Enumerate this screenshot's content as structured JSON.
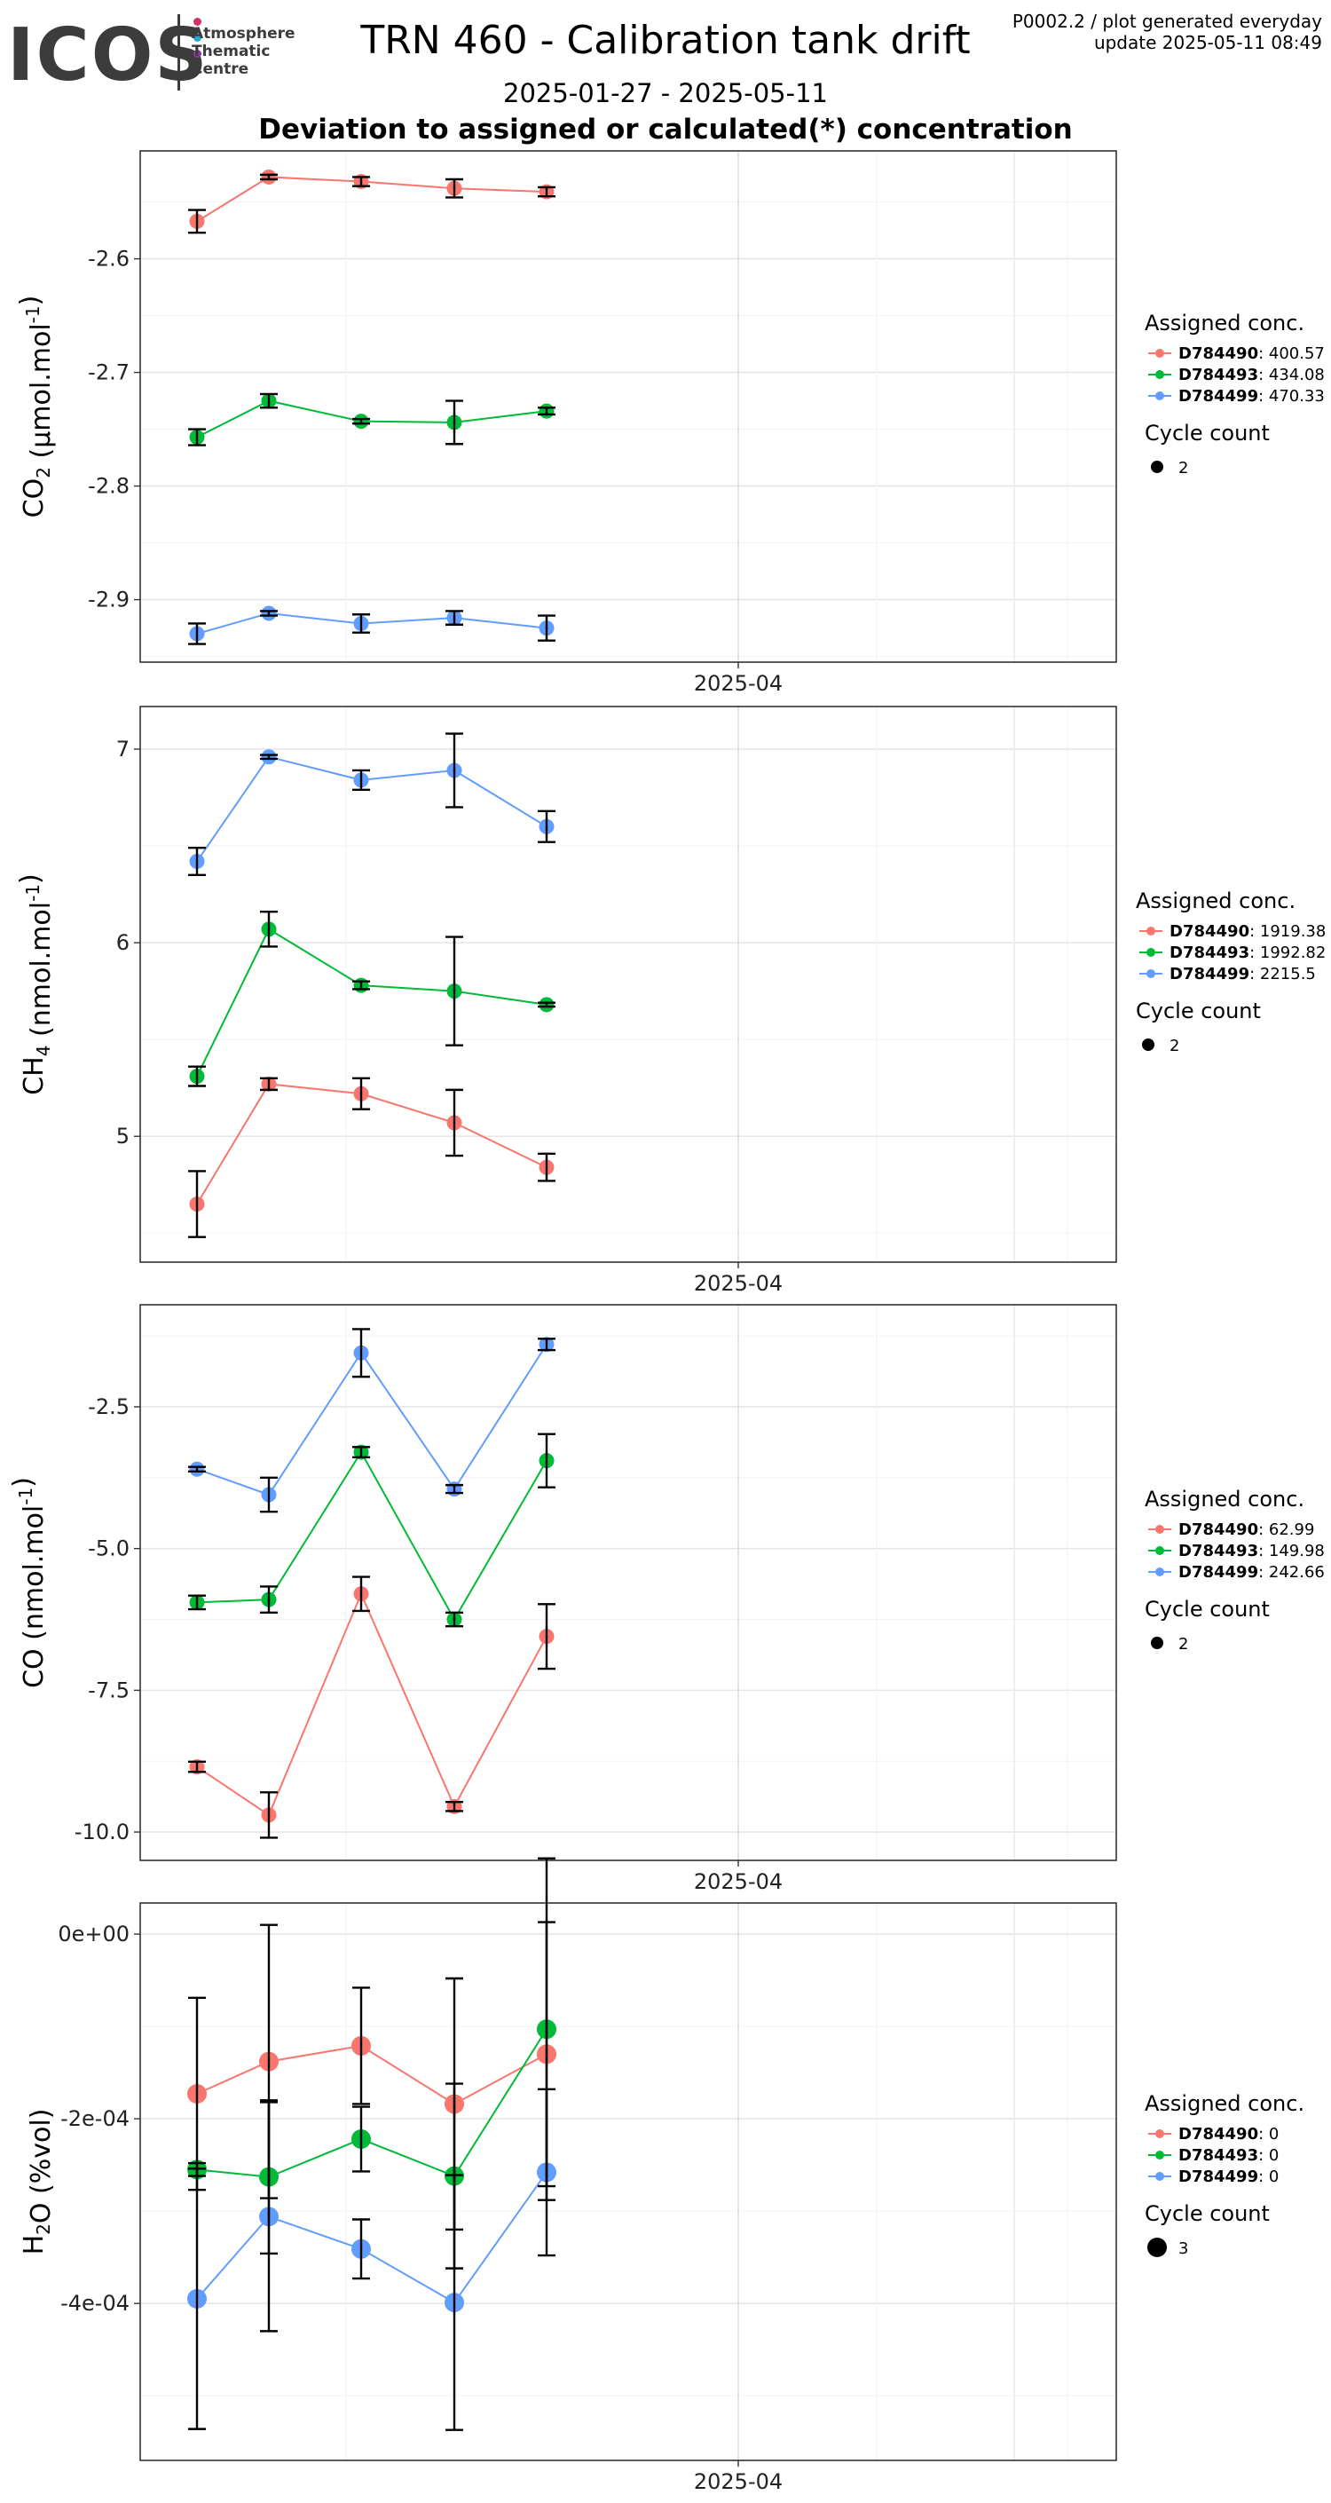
{
  "logo": {
    "text": "ICOS",
    "subtitle_lines": [
      "Atmosphere",
      "Thematic",
      "Centre"
    ],
    "dot_colors": [
      "#d0306c",
      "#1fa8e0",
      "#8a3b9e"
    ]
  },
  "header": {
    "title": "TRN 460 - Calibration tank drift",
    "date_range": "2025-01-27 - 2025-05-11",
    "subtitle": "Deviation to assigned or calculated(*) concentration",
    "meta_line1": "P0002.2 / plot generated everyday",
    "meta_line2": "update  2025-05-11 08:49"
  },
  "colors": {
    "D784490": "#F8766D",
    "D784493": "#00BA38",
    "D784499": "#619CFF"
  },
  "chart_data": [
    {
      "type": "line",
      "ylabel": "CO2 (µmol.mol-1)",
      "ylabel_main": "CO",
      "ylabel_sub": "2",
      "ylabel_unit": " (µmol.mol",
      "ylabel_sup": "-1",
      "ylabel_end": ")",
      "x_tick_label": "2025-04",
      "ylim": [
        -2.955,
        -2.505
      ],
      "yticks": [
        -2.6,
        -2.7,
        -2.8,
        -2.9
      ],
      "ytick_labels": [
        "-2.6",
        "-2.7",
        "-2.8",
        "-2.9"
      ],
      "legend_title": "Assigned conc.",
      "size_title": "Cycle count",
      "size_value": "2",
      "series": [
        {
          "name": "D784490",
          "value_label": ": 400.57",
          "y": [
            -2.567,
            -2.528,
            -2.532,
            -2.538,
            -2.541
          ],
          "err": [
            0.01,
            0.002,
            0.004,
            0.008,
            0.004
          ]
        },
        {
          "name": "D784493",
          "value_label": ": 434.08",
          "y": [
            -2.757,
            -2.725,
            -2.743,
            -2.744,
            -2.734
          ],
          "err": [
            0.007,
            0.006,
            0.002,
            0.019,
            0.003
          ]
        },
        {
          "name": "D784499",
          "value_label": ": 470.33",
          "y": [
            -2.93,
            -2.912,
            -2.921,
            -2.916,
            -2.925
          ],
          "err": [
            0.009,
            0.002,
            0.008,
            0.006,
            0.011
          ]
        }
      ]
    },
    {
      "type": "line",
      "ylabel": "CH4 (nmol.mol-1)",
      "ylabel_main": "CH",
      "ylabel_sub": "4",
      "ylabel_unit": " (nmol.mol",
      "ylabel_sup": "-1",
      "ylabel_end": ")",
      "x_tick_label": "2025-04",
      "ylim": [
        4.35,
        7.22
      ],
      "yticks": [
        7,
        6,
        5
      ],
      "ytick_labels": [
        "7",
        "6",
        "5"
      ],
      "legend_title": "Assigned conc.",
      "size_title": "Cycle count",
      "size_value": "2",
      "series": [
        {
          "name": "D784490",
          "value_label": ": 1919.38",
          "y": [
            4.65,
            5.27,
            5.22,
            5.07,
            4.84
          ],
          "err": [
            0.17,
            0.03,
            0.08,
            0.17,
            0.07
          ]
        },
        {
          "name": "D784493",
          "value_label": ": 1992.82",
          "y": [
            5.31,
            6.07,
            5.78,
            5.75,
            5.68
          ],
          "err": [
            0.05,
            0.09,
            0.02,
            0.28,
            0.01
          ]
        },
        {
          "name": "D784499",
          "value_label": ": 2215.5",
          "y": [
            6.42,
            6.96,
            6.84,
            6.89,
            6.6
          ],
          "err": [
            0.07,
            0.01,
            0.05,
            0.19,
            0.08
          ]
        }
      ]
    },
    {
      "type": "line",
      "ylabel": "CO (nmol.mol-1)",
      "ylabel_main": "CO",
      "ylabel_sub": "",
      "ylabel_unit": " (nmol.mol",
      "ylabel_sup": "-1",
      "ylabel_end": ")",
      "x_tick_label": "2025-04",
      "ylim": [
        -10.5,
        -0.7
      ],
      "yticks": [
        -2.5,
        -5.0,
        -7.5,
        -10.0
      ],
      "ytick_labels": [
        "-2.5",
        "-5.0",
        "-7.5",
        "-10.0"
      ],
      "legend_title": "Assigned conc.",
      "size_title": "Cycle count",
      "size_value": "2",
      "series": [
        {
          "name": "D784490",
          "value_label": ": 62.99",
          "y": [
            -8.85,
            -9.7,
            -5.8,
            -9.55,
            -6.55
          ],
          "err": [
            0.09,
            0.4,
            0.3,
            0.08,
            0.57
          ]
        },
        {
          "name": "D784493",
          "value_label": ": 149.98",
          "y": [
            -5.95,
            -5.9,
            -3.3,
            -6.25,
            -3.45
          ],
          "err": [
            0.12,
            0.23,
            0.09,
            0.12,
            0.47
          ]
        },
        {
          "name": "D784499",
          "value_label": ": 242.66",
          "y": [
            -3.6,
            -4.05,
            -1.55,
            -3.95,
            -1.4
          ],
          "err": [
            0.04,
            0.3,
            0.42,
            0.07,
            0.1
          ]
        }
      ]
    },
    {
      "type": "line",
      "ylabel": "H2O (%vol)",
      "ylabel_main": "H",
      "ylabel_sub": "2",
      "ylabel_unit": "O (%vol)",
      "ylabel_sup": "",
      "ylabel_end": "",
      "x_tick_label": "2025-04",
      "ylim": [
        -0.00057,
        3.37e-05
      ],
      "yticks": [
        0,
        -0.0002,
        -0.0004
      ],
      "ytick_labels": [
        "0e+00",
        "-2e-04",
        "-4e-04"
      ],
      "legend_title": "Assigned conc.",
      "size_title": "Cycle count",
      "size_value": "3",
      "series": [
        {
          "name": "D784490",
          "value_label": ": 0",
          "y": [
            -0.000173,
            -0.000138,
            -0.000121,
            -0.000184,
            -0.00013
          ],
          "err": [
            0.000104,
            0.000148,
            6.3e-05,
            0.000136,
            0.000143
          ]
        },
        {
          "name": "D784493",
          "value_label": ": 0",
          "y": [
            -0.000255,
            -0.000263,
            -0.000222,
            -0.000262,
            -0.000103
          ],
          "err": [
            7e-06,
            8.3e-05,
            3.5e-05,
            0.0001,
            0.000185
          ]
        },
        {
          "name": "D784499",
          "value_label": ": 0",
          "y": [
            -0.000395,
            -0.000306,
            -0.000341,
            -0.000399,
            -0.000258
          ],
          "err": [
            0.000141,
            0.000124,
            3.2e-05,
            0.000138,
            9e-05
          ]
        }
      ]
    }
  ]
}
